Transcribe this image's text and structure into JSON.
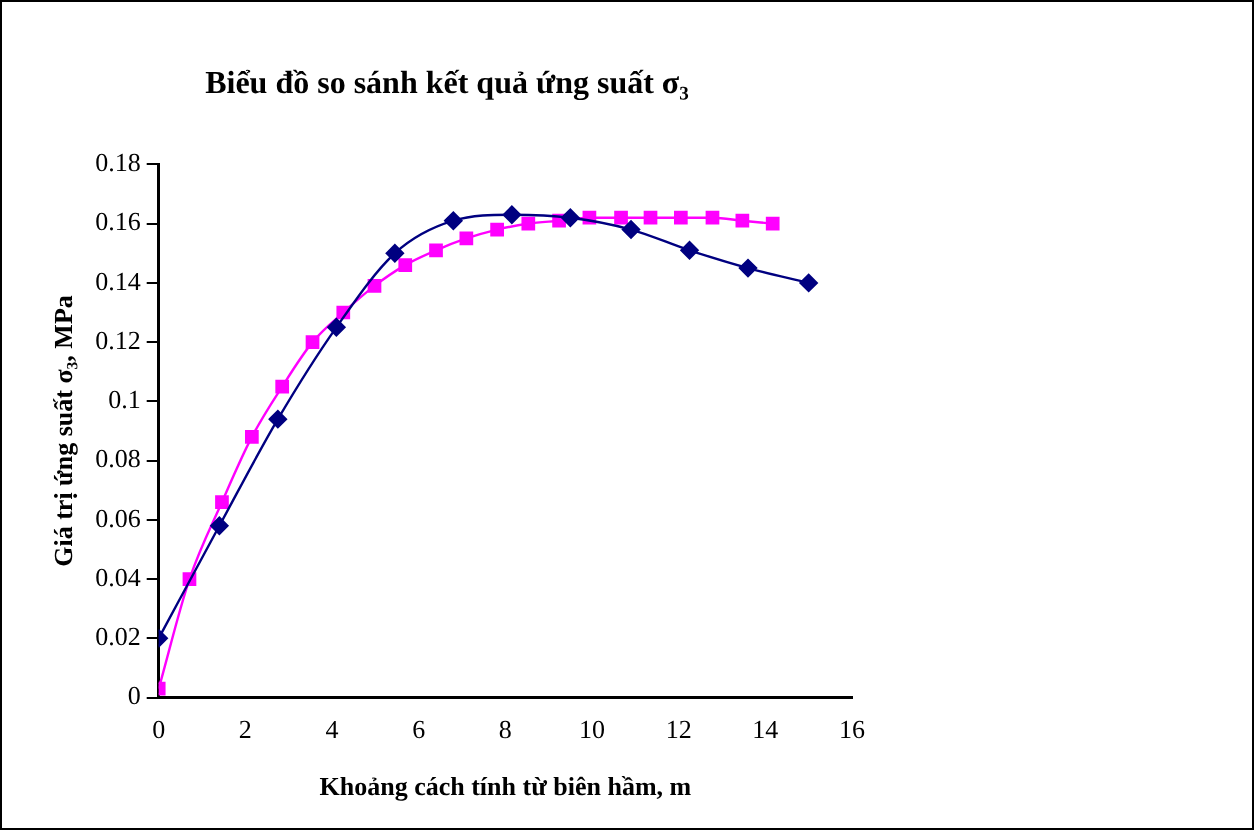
{
  "chart_data": {
    "type": "line",
    "title": "Biểu đồ so sánh kết quả ứng suất σ₃",
    "xlabel": "Khoảng cách tính từ biên hầm, m",
    "ylabel": "Giá trị ứng suất σ₃, MPa",
    "xlim": [
      0,
      16
    ],
    "xticks": [
      0,
      2,
      4,
      6,
      8,
      10,
      12,
      14,
      16
    ],
    "ylim": [
      0,
      0.18
    ],
    "yticks": [
      0,
      0.02,
      0.04,
      0.06,
      0.08,
      0.1,
      0.12,
      0.14,
      0.16,
      0.18
    ],
    "grid": false,
    "legend": false,
    "series": [
      {
        "color": "#000080",
        "marker": "diamond",
        "x": [
          0,
          1.4,
          2.75,
          4.1,
          5.45,
          6.8,
          8.15,
          9.5,
          10.9,
          12.25,
          13.6,
          15
        ],
        "values": [
          0.02,
          0.058,
          0.094,
          0.125,
          0.15,
          0.161,
          0.163,
          0.162,
          0.158,
          0.151,
          0.145,
          0.14
        ]
      },
      {
        "color": "#ff00ff",
        "marker": "square",
        "x": [
          0,
          0.71,
          1.46,
          2.15,
          2.85,
          3.55,
          4.26,
          4.98,
          5.69,
          6.4,
          7.1,
          7.81,
          8.53,
          9.24,
          9.94,
          10.67,
          11.35,
          12.05,
          12.78,
          13.47,
          14.17
        ],
        "values": [
          0.003,
          0.04,
          0.066,
          0.088,
          0.105,
          0.12,
          0.13,
          0.139,
          0.146,
          0.151,
          0.155,
          0.158,
          0.16,
          0.161,
          0.162,
          0.162,
          0.162,
          0.162,
          0.162,
          0.161,
          0.16
        ]
      }
    ]
  }
}
